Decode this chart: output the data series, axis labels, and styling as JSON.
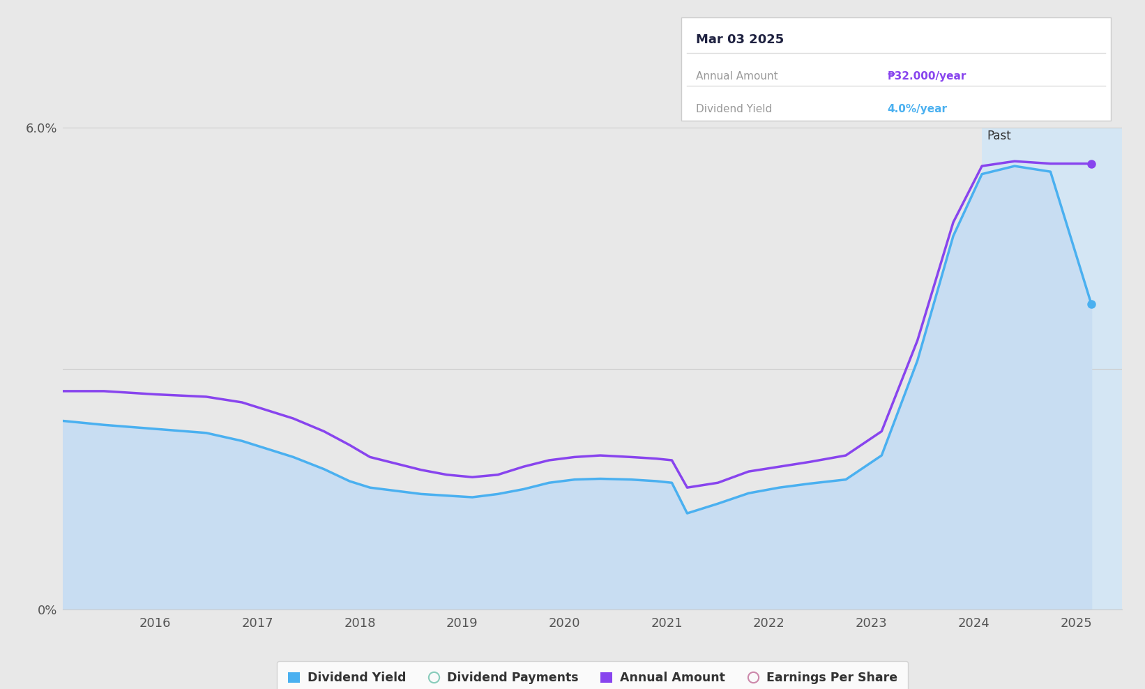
{
  "bg_color": "#e8e8e8",
  "fill_color": "#c8ddf2",
  "past_bg_color": "#d4e6f4",
  "tooltip_date": "Mar 03 2025",
  "tooltip_annual_label": "Annual Amount",
  "tooltip_annual_amount": "₱32.000/year",
  "tooltip_annual_color": "#8844ee",
  "tooltip_yield_label": "Dividend Yield",
  "tooltip_dividend_yield": "4.0%/year",
  "tooltip_yield_color": "#4ab0f0",
  "past_label": "Past",
  "past_start_x": 2024.08,
  "xmin": 2015.1,
  "xmax": 2025.45,
  "ymin": 0.0,
  "ymax": 6.0,
  "ytick_vals": [
    0.0,
    3.0,
    6.0
  ],
  "ytick_labels": [
    "0%",
    "",
    "6.0%"
  ],
  "xtick_positions": [
    2016,
    2017,
    2018,
    2019,
    2020,
    2021,
    2022,
    2023,
    2024,
    2025
  ],
  "dividend_yield_x": [
    2015.1,
    2015.5,
    2016.0,
    2016.5,
    2016.85,
    2017.1,
    2017.35,
    2017.65,
    2017.9,
    2018.1,
    2018.35,
    2018.6,
    2018.85,
    2019.1,
    2019.35,
    2019.6,
    2019.85,
    2020.1,
    2020.35,
    2020.65,
    2020.9,
    2021.05,
    2021.2,
    2021.5,
    2021.8,
    2022.1,
    2022.4,
    2022.75,
    2023.1,
    2023.45,
    2023.8,
    2024.08,
    2024.4,
    2024.75,
    2025.15
  ],
  "dividend_yield_y": [
    2.35,
    2.3,
    2.25,
    2.2,
    2.1,
    2.0,
    1.9,
    1.75,
    1.6,
    1.52,
    1.48,
    1.44,
    1.42,
    1.4,
    1.44,
    1.5,
    1.58,
    1.62,
    1.63,
    1.62,
    1.6,
    1.58,
    1.2,
    1.32,
    1.45,
    1.52,
    1.57,
    1.62,
    1.92,
    3.1,
    4.65,
    5.42,
    5.52,
    5.45,
    3.8
  ],
  "annual_amount_x": [
    2015.1,
    2015.5,
    2016.0,
    2016.5,
    2016.85,
    2017.1,
    2017.35,
    2017.65,
    2017.9,
    2018.1,
    2018.35,
    2018.6,
    2018.85,
    2019.1,
    2019.35,
    2019.6,
    2019.85,
    2020.1,
    2020.35,
    2020.65,
    2020.9,
    2021.05,
    2021.2,
    2021.5,
    2021.8,
    2022.1,
    2022.4,
    2022.75,
    2023.1,
    2023.45,
    2023.8,
    2024.08,
    2024.4,
    2024.75,
    2025.15
  ],
  "annual_amount_y": [
    2.72,
    2.72,
    2.68,
    2.65,
    2.58,
    2.48,
    2.38,
    2.22,
    2.05,
    1.9,
    1.82,
    1.74,
    1.68,
    1.65,
    1.68,
    1.78,
    1.86,
    1.9,
    1.92,
    1.9,
    1.88,
    1.86,
    1.52,
    1.58,
    1.72,
    1.78,
    1.84,
    1.92,
    2.22,
    3.35,
    4.82,
    5.52,
    5.58,
    5.55,
    5.55
  ],
  "dividend_yield_color": "#4ab0f0",
  "annual_amount_color": "#8844ee",
  "grid_color": "#cccccc",
  "legend_items": [
    {
      "label": "Dividend Yield",
      "color": "#4ab0f0",
      "filled": true
    },
    {
      "label": "Dividend Payments",
      "color": "#88ccbb",
      "filled": false
    },
    {
      "label": "Annual Amount",
      "color": "#8844ee",
      "filled": true
    },
    {
      "label": "Earnings Per Share",
      "color": "#cc88aa",
      "filled": false
    }
  ]
}
